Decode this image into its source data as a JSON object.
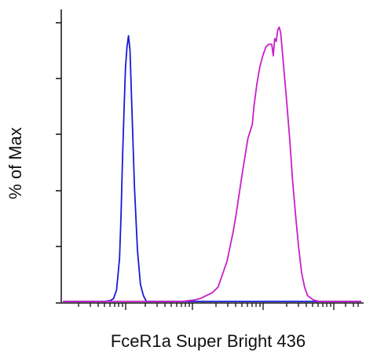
{
  "chart_data": {
    "type": "line",
    "title": "",
    "xlabel": "FceR1a Super Bright 436",
    "ylabel": "% of Max",
    "xlim": [
      0,
      100
    ],
    "ylim": [
      0,
      100
    ],
    "grid": false,
    "legend": "none",
    "series": [
      {
        "color": "#1a1ad6",
        "x": [
          0,
          14,
          16,
          17,
          18,
          19,
          19.5,
          20,
          20.6,
          21,
          21.5,
          22,
          22.5,
          23,
          24,
          25,
          26,
          27,
          28,
          100
        ],
        "y": [
          0,
          0,
          0.3,
          1,
          4,
          15,
          30,
          50,
          70,
          82,
          89,
          93,
          88,
          72,
          40,
          18,
          6,
          2,
          0,
          0
        ]
      },
      {
        "color": "#c91ec9",
        "x": [
          0,
          40,
          44,
          46,
          48,
          50,
          52,
          53,
          55,
          57,
          58,
          60,
          62,
          63.5,
          64,
          65,
          66,
          67,
          68,
          69,
          70,
          70.5,
          71,
          71.5,
          72,
          72.5,
          73,
          73.5,
          74,
          75,
          76,
          77,
          78,
          79,
          80,
          81,
          82,
          84,
          86,
          100
        ],
        "y": [
          0,
          0,
          0.5,
          1,
          2,
          3,
          5,
          8,
          14,
          24,
          30,
          44,
          57,
          62,
          68,
          76,
          82,
          86,
          89,
          90,
          90,
          86,
          92,
          91,
          95,
          96,
          94,
          88,
          82,
          70,
          57,
          42,
          30,
          19,
          10,
          5,
          2,
          0.5,
          0,
          0
        ]
      }
    ]
  }
}
